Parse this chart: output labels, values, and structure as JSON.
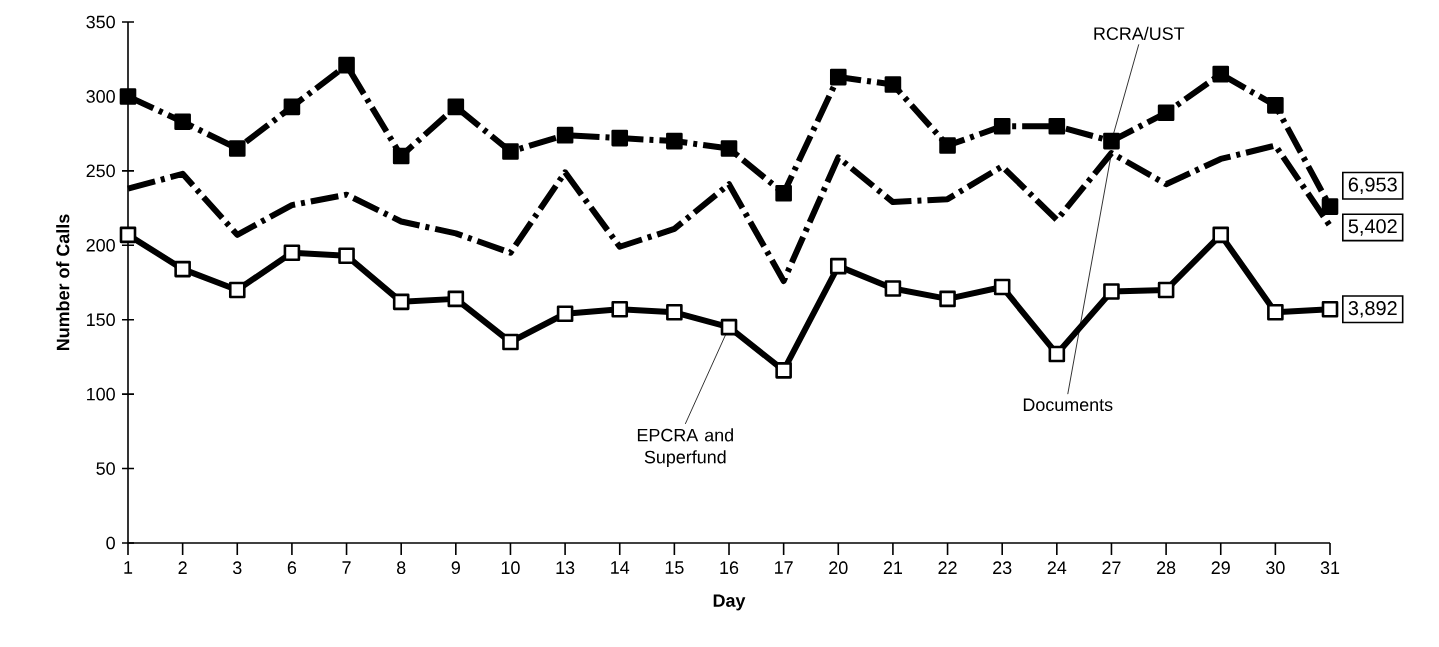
{
  "chart_data": {
    "type": "line",
    "xlabel": "Day",
    "ylabel": "Number of Calls",
    "categories": [
      "1",
      "2",
      "3",
      "6",
      "7",
      "8",
      "9",
      "10",
      "13",
      "14",
      "15",
      "16",
      "17",
      "20",
      "21",
      "22",
      "23",
      "24",
      "27",
      "28",
      "29",
      "30",
      "31"
    ],
    "ylim": [
      0,
      350
    ],
    "yticks": [
      0,
      50,
      100,
      150,
      200,
      250,
      300,
      350
    ],
    "series": [
      {
        "name": "RCRA/UST",
        "color": "#000000",
        "marker": "square",
        "line_style": "dashed",
        "values": [
          300,
          283,
          265,
          293,
          321,
          260,
          293,
          263,
          274,
          272,
          270,
          265,
          235,
          313,
          308,
          267,
          280,
          280,
          270,
          289,
          315,
          294,
          226
        ]
      },
      {
        "name": "Documents",
        "color": "#000000",
        "marker": "none",
        "line_style": "dashed",
        "values": [
          238,
          248,
          207,
          227,
          234,
          216,
          208,
          195,
          249,
          199,
          211,
          241,
          176,
          259,
          229,
          231,
          253,
          217,
          262,
          241,
          258,
          267,
          213
        ]
      },
      {
        "name": "EPCRA and Superfund",
        "color": "#000000",
        "marker": "square",
        "line_style": "solid",
        "values": [
          207,
          184,
          170,
          195,
          193,
          162,
          164,
          135,
          154,
          157,
          155,
          145,
          116,
          186,
          171,
          164,
          172,
          127,
          169,
          170,
          207,
          155,
          157
        ]
      }
    ],
    "annotations": [
      "6,953",
      "5,402",
      "3,892"
    ]
  }
}
